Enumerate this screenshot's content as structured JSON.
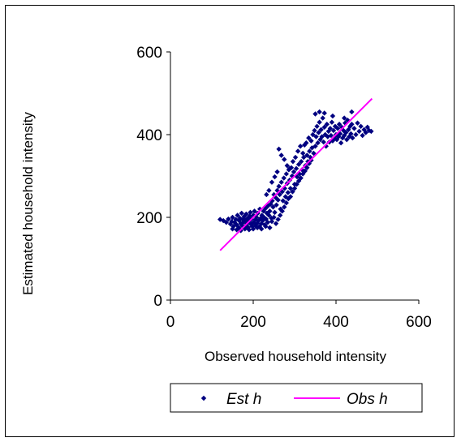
{
  "chart_data": {
    "type": "scatter",
    "title": "",
    "xlabel": "Observed household intensity",
    "ylabel": "Estimated household intensity",
    "xlim": [
      0,
      600
    ],
    "ylim": [
      0,
      600
    ],
    "xticks": [
      "0",
      "200",
      "400",
      "600"
    ],
    "yticks": [
      "0",
      "200",
      "400",
      "600"
    ],
    "grid": false,
    "legend_position": "bottom",
    "series": [
      {
        "name": "Est h",
        "kind": "scatter",
        "color": "#000080",
        "marker": "diamond",
        "points": [
          [
            120,
            195
          ],
          [
            128,
            192
          ],
          [
            135,
            188
          ],
          [
            140,
            196
          ],
          [
            145,
            184
          ],
          [
            148,
            190
          ],
          [
            150,
            200
          ],
          [
            152,
            178
          ],
          [
            155,
            188
          ],
          [
            158,
            195
          ],
          [
            160,
            182
          ],
          [
            162,
            205
          ],
          [
            165,
            175
          ],
          [
            166,
            192
          ],
          [
            168,
            198
          ],
          [
            170,
            185
          ],
          [
            172,
            210
          ],
          [
            173,
            180
          ],
          [
            175,
            195
          ],
          [
            176,
            188
          ],
          [
            178,
            202
          ],
          [
            180,
            178
          ],
          [
            181,
            193
          ],
          [
            183,
            208
          ],
          [
            185,
            185
          ],
          [
            186,
            197
          ],
          [
            188,
            176
          ],
          [
            190,
            190
          ],
          [
            191,
            203
          ],
          [
            193,
            212
          ],
          [
            195,
            183
          ],
          [
            196,
            196
          ],
          [
            198,
            178
          ],
          [
            200,
            205
          ],
          [
            201,
            188
          ],
          [
            203,
            215
          ],
          [
            205,
            180
          ],
          [
            206,
            195
          ],
          [
            208,
            200
          ],
          [
            210,
            186
          ],
          [
            211,
            210
          ],
          [
            213,
            192
          ],
          [
            215,
            178
          ],
          [
            216,
            220
          ],
          [
            218,
            198
          ],
          [
            220,
            185
          ],
          [
            221,
            205
          ],
          [
            223,
            192
          ],
          [
            225,
            215
          ],
          [
            226,
            200
          ],
          [
            228,
            182
          ],
          [
            230,
            222
          ],
          [
            231,
            196
          ],
          [
            233,
            210
          ],
          [
            235,
            188
          ],
          [
            236,
            228
          ],
          [
            238,
            205
          ],
          [
            240,
            215
          ],
          [
            242,
            232
          ],
          [
            244,
            198
          ],
          [
            246,
            240
          ],
          [
            248,
            225
          ],
          [
            250,
            255
          ],
          [
            252,
            212
          ],
          [
            254,
            248
          ],
          [
            256,
            230
          ],
          [
            258,
            265
          ],
          [
            260,
            242
          ],
          [
            262,
            275
          ],
          [
            264,
            255
          ],
          [
            266,
            220
          ],
          [
            268,
            285
          ],
          [
            270,
            262
          ],
          [
            272,
            240
          ],
          [
            274,
            295
          ],
          [
            276,
            270
          ],
          [
            278,
            250
          ],
          [
            280,
            305
          ],
          [
            282,
            282
          ],
          [
            284,
            260
          ],
          [
            286,
            315
          ],
          [
            288,
            290
          ],
          [
            290,
            270
          ],
          [
            292,
            320
          ],
          [
            294,
            300
          ],
          [
            296,
            335
          ],
          [
            298,
            310
          ],
          [
            300,
            280
          ],
          [
            302,
            345
          ],
          [
            304,
            318
          ],
          [
            306,
            298
          ],
          [
            308,
            360
          ],
          [
            310,
            328
          ],
          [
            312,
            305
          ],
          [
            314,
            372
          ],
          [
            316,
            335
          ],
          [
            318,
            315
          ],
          [
            320,
            355
          ],
          [
            322,
            345
          ],
          [
            324,
            375
          ],
          [
            326,
            325
          ],
          [
            328,
            380
          ],
          [
            330,
            350
          ],
          [
            332,
            335
          ],
          [
            334,
            392
          ],
          [
            336,
            360
          ],
          [
            338,
            345
          ],
          [
            340,
            385
          ],
          [
            342,
            368
          ],
          [
            344,
            400
          ],
          [
            346,
            355
          ],
          [
            348,
            410
          ],
          [
            350,
            372
          ],
          [
            352,
            395
          ],
          [
            354,
            420
          ],
          [
            356,
            380
          ],
          [
            358,
            405
          ],
          [
            360,
            430
          ],
          [
            362,
            388
          ],
          [
            364,
            412
          ],
          [
            366,
            395
          ],
          [
            368,
            440
          ],
          [
            370,
            382
          ],
          [
            372,
            418
          ],
          [
            374,
            400
          ],
          [
            376,
            372
          ],
          [
            378,
            425
          ],
          [
            380,
            395
          ],
          [
            382,
            408
          ],
          [
            384,
            382
          ],
          [
            386,
            415
          ],
          [
            388,
            398
          ],
          [
            390,
            430
          ],
          [
            392,
            385
          ],
          [
            394,
            410
          ],
          [
            396,
            392
          ],
          [
            398,
            420
          ],
          [
            400,
            400
          ],
          [
            402,
            388
          ],
          [
            404,
            415
          ],
          [
            406,
            395
          ],
          [
            408,
            425
          ],
          [
            410,
            402
          ],
          [
            412,
            380
          ],
          [
            414,
            418
          ],
          [
            416,
            392
          ],
          [
            418,
            410
          ],
          [
            420,
            398
          ],
          [
            422,
            428
          ],
          [
            424,
            405
          ],
          [
            426,
            388
          ],
          [
            428,
            435
          ],
          [
            430,
            412
          ],
          [
            432,
            395
          ],
          [
            434,
            420
          ],
          [
            436,
            402
          ],
          [
            438,
            425
          ],
          [
            440,
            392
          ],
          [
            444,
            415
          ],
          [
            448,
            400
          ],
          [
            452,
            428
          ],
          [
            456,
            408
          ],
          [
            460,
            420
          ],
          [
            464,
            398
          ],
          [
            468,
            412
          ],
          [
            472,
            405
          ],
          [
            476,
            418
          ],
          [
            480,
            410
          ],
          [
            485,
            408
          ],
          [
            150,
            172
          ],
          [
            160,
            170
          ],
          [
            170,
            168
          ],
          [
            180,
            172
          ],
          [
            190,
            170
          ],
          [
            200,
            172
          ],
          [
            210,
            175
          ],
          [
            220,
            172
          ],
          [
            230,
            178
          ],
          [
            240,
            175
          ],
          [
            245,
            190
          ],
          [
            250,
            200
          ],
          [
            255,
            185
          ],
          [
            260,
            195
          ],
          [
            265,
            205
          ],
          [
            270,
            215
          ],
          [
            275,
            225
          ],
          [
            280,
            235
          ],
          [
            285,
            245
          ],
          [
            290,
            250
          ],
          [
            295,
            262
          ],
          [
            300,
            270
          ],
          [
            305,
            280
          ],
          [
            310,
            288
          ],
          [
            315,
            295
          ],
          [
            320,
            305
          ],
          [
            325,
            312
          ],
          [
            330,
            320
          ],
          [
            335,
            330
          ],
          [
            340,
            338
          ],
          [
            262,
            365
          ],
          [
            268,
            350
          ],
          [
            275,
            340
          ],
          [
            282,
            325
          ],
          [
            288,
            318
          ],
          [
            245,
            285
          ],
          [
            252,
            298
          ],
          [
            258,
            310
          ],
          [
            238,
            265
          ],
          [
            232,
            255
          ],
          [
            350,
            450
          ],
          [
            360,
            455
          ],
          [
            372,
            452
          ],
          [
            392,
            445
          ],
          [
            420,
            440
          ],
          [
            438,
            455
          ]
        ]
      },
      {
        "name": "Obs h",
        "kind": "line",
        "color": "#ff00ff",
        "x": [
          120,
          487
        ],
        "y": [
          120,
          487
        ]
      }
    ]
  }
}
